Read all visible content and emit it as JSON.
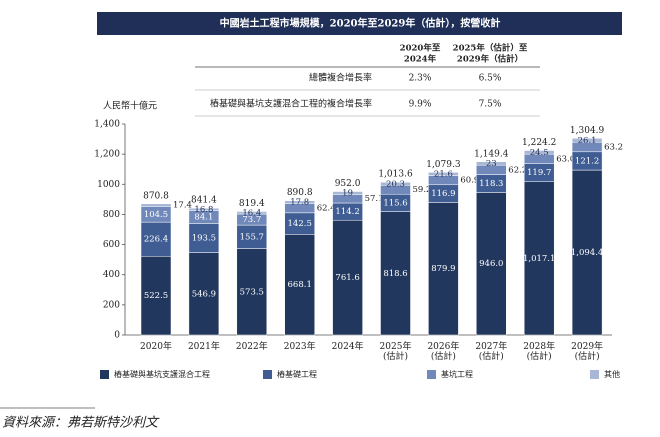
{
  "chart_data": {
    "type": "stacked_bar",
    "title": "中國岩土工程市場規模，2020年至2029年（估計），按營收計",
    "y_label": "人民幣十億元",
    "source": "資料來源：弗若斯特沙利文",
    "table": {
      "headers": [
        [
          "2020年至",
          "2024年"
        ],
        [
          "2025年（估計）至",
          "2029年（估計）"
        ]
      ],
      "rows": [
        [
          "總體複合增長率",
          "2.3%",
          "6.5%"
        ],
        [
          "樁基礎與基坑支護混合工程的複合增長率",
          "9.9%",
          "7.5%"
        ]
      ]
    },
    "categories": [
      [
        "2020年"
      ],
      [
        "2021年"
      ],
      [
        "2022年"
      ],
      [
        "2023年"
      ],
      [
        "2024年"
      ],
      [
        "2025年",
        "(估計)"
      ],
      [
        "2026年",
        "(估計)"
      ],
      [
        "2027年",
        "(估計)"
      ],
      [
        "2028年",
        "(估計)"
      ],
      [
        "2029年",
        "(估計)"
      ]
    ],
    "series": [
      {
        "name": "樁基礎與基坑支護混合工程",
        "color": "#22375e",
        "values": [
          522.5,
          546.9,
          573.5,
          668.1,
          761.6,
          818.6,
          879.9,
          946.0,
          1017.1,
          1094.4
        ],
        "value_labels": [
          "522.5",
          "546.9",
          "573.5",
          "668.1",
          "761.6",
          "818.6",
          "879.9",
          "946.0",
          "1,017.1",
          "1,094.4"
        ]
      },
      {
        "name": "樁基礎工程",
        "color": "#3f5d92",
        "values": [
          226.4,
          193.5,
          155.7,
          142.5,
          114.2,
          115.6,
          116.9,
          118.3,
          119.7,
          121.2
        ]
      },
      {
        "name": "基坑工程",
        "color": "#7088ba",
        "values": [
          104.5,
          84.1,
          73.7,
          62.4,
          57.1,
          59.2,
          60.9,
          62.2,
          63.0,
          63.2
        ],
        "value_labels": [
          "104.5",
          "84.1",
          "73.7",
          "62.4",
          "57.1",
          "59.2",
          "60.9",
          "62.2",
          "63.0",
          "63.2"
        ]
      },
      {
        "name": "其他",
        "color": "#a9b7d6",
        "values": [
          17.4,
          16.8,
          16.4,
          17.8,
          19.0,
          20.3,
          21.6,
          23.0,
          24.5,
          26.1
        ]
      }
    ],
    "totals": [
      870.8,
      841.4,
      819.4,
      890.8,
      952.0,
      1013.6,
      1079.3,
      1149.4,
      1224.2,
      1304.9
    ],
    "total_labels": [
      "870.8",
      "841.4",
      "819.4",
      "890.8",
      "952.0",
      "1,013.6",
      "1,079.3",
      "1,149.4",
      "1,224.2",
      "1,304.9"
    ],
    "ylim": [
      0,
      1400
    ],
    "yticks": [
      0,
      200,
      400,
      600,
      800,
      1000,
      {
        "value": 1200,
        "label": "1,200"
      },
      {
        "value": 1400,
        "label": "1,400"
      }
    ],
    "grid": false
  }
}
